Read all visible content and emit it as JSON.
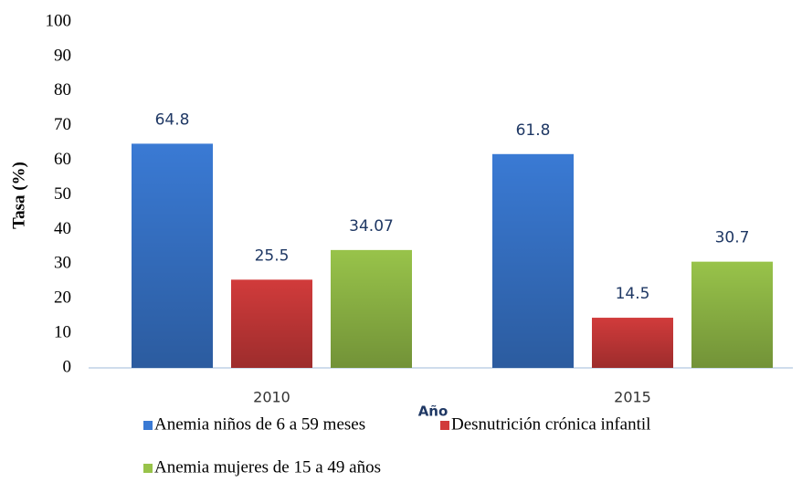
{
  "chart_data": {
    "type": "bar",
    "categories": [
      "2010",
      "2015"
    ],
    "series": [
      {
        "name": "Anemia niños de 6 a 59 meses",
        "color": "#3a7ad4",
        "values": [
          64.8,
          61.8
        ]
      },
      {
        "name": "Desnutrición crónica infantil",
        "color": "#d13b3b",
        "values": [
          25.5,
          14.5
        ]
      },
      {
        "name": "Anemia mujeres de 15 a 49 años",
        "color": "#98c34a",
        "values": [
          34.07,
          30.7
        ]
      }
    ],
    "xlabel": "Año",
    "ylabel": "Tasa (%)",
    "ylim": [
      0,
      100
    ],
    "yticks": [
      0,
      10,
      20,
      30,
      40,
      50,
      60,
      70,
      80,
      90,
      100
    ],
    "grid": false,
    "legend": "bottom"
  }
}
